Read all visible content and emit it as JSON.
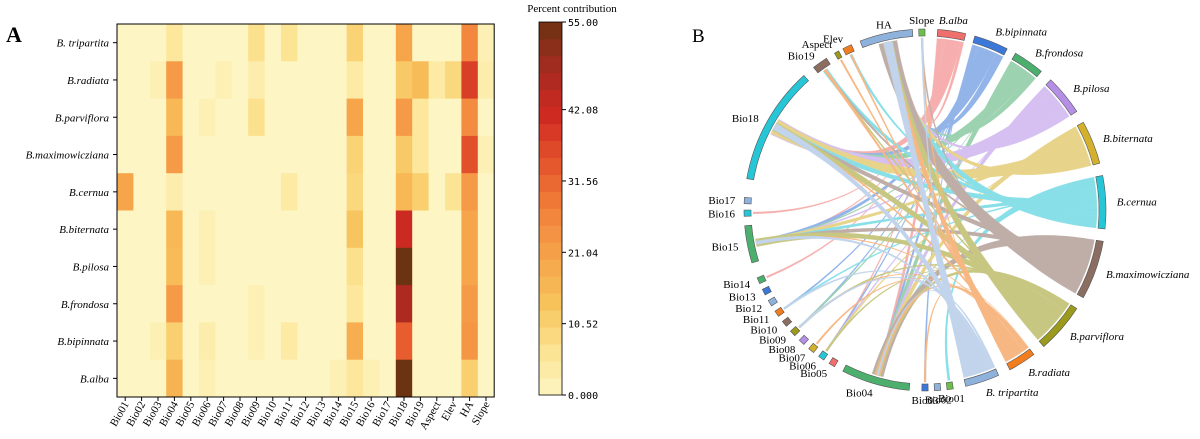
{
  "panels": {
    "a_label": "A",
    "b_label": "B"
  },
  "chart_data": [
    {
      "type": "heatmap",
      "panel": "A",
      "title": "",
      "colorbar_title": "Percent contribution",
      "colorbar_ticks": [
        "0.000",
        "10.52",
        "21.04",
        "31.56",
        "42.08",
        "55.00"
      ],
      "colorbar_range": [
        0,
        55
      ],
      "colorbar_stops": [
        "#fdf6c4",
        "#fbe28e",
        "#f7c25a",
        "#f6a24a",
        "#f2803a",
        "#e4542c",
        "#cf2a22",
        "#a52a20",
        "#6b3312"
      ],
      "columns": [
        "Bio01",
        "Bio02",
        "Bio03",
        "Bio04",
        "Bio05",
        "Bio06",
        "Bio07",
        "Bio08",
        "Bio09",
        "Bio10",
        "Bio11",
        "Bio12",
        "Bio13",
        "Bio14",
        "Bio15",
        "Bio16",
        "Bio17",
        "Bio18",
        "Bio19",
        "Aspect",
        "Elev",
        "HA",
        "Slope"
      ],
      "rows": [
        "B. tripartita",
        "B.radiata",
        "B.parviflora",
        "B.maximowicziana",
        "B.cernua",
        "B.biternata",
        "B.pilosa",
        "B.frondosa",
        "B.bipinnata",
        "B.alba"
      ],
      "values": [
        [
          0,
          0,
          0,
          5,
          0,
          0,
          0,
          0,
          7,
          0,
          6,
          0,
          0,
          0,
          10,
          0,
          0,
          20,
          0,
          0,
          0,
          26,
          2
        ],
        [
          0,
          0,
          2,
          22,
          0,
          0,
          2,
          0,
          3,
          0,
          0,
          0,
          0,
          0,
          4,
          0,
          0,
          12,
          15,
          4,
          9,
          38,
          3
        ],
        [
          0,
          0,
          0,
          16,
          0,
          2,
          0,
          0,
          7,
          0,
          0,
          0,
          0,
          0,
          20,
          0,
          0,
          22,
          5,
          0,
          0,
          25,
          0
        ],
        [
          0,
          0,
          0,
          22,
          0,
          0,
          0,
          0,
          0,
          0,
          0,
          0,
          0,
          0,
          10,
          0,
          0,
          12,
          5,
          0,
          0,
          35,
          2
        ],
        [
          20,
          0,
          0,
          3,
          0,
          0,
          0,
          0,
          0,
          0,
          4,
          0,
          0,
          0,
          9,
          0,
          0,
          16,
          11,
          0,
          6,
          22,
          0
        ],
        [
          0,
          0,
          0,
          16,
          0,
          2,
          0,
          0,
          0,
          0,
          0,
          0,
          0,
          0,
          13,
          0,
          0,
          42,
          0,
          0,
          0,
          20,
          0
        ],
        [
          0,
          0,
          0,
          15,
          0,
          2,
          0,
          0,
          0,
          0,
          0,
          0,
          0,
          0,
          7,
          0,
          0,
          55,
          0,
          0,
          0,
          20,
          0
        ],
        [
          0,
          0,
          0,
          22,
          0,
          0,
          0,
          0,
          2,
          0,
          0,
          0,
          0,
          0,
          5,
          0,
          0,
          47,
          0,
          0,
          0,
          22,
          0
        ],
        [
          0,
          0,
          2,
          11,
          0,
          3,
          0,
          0,
          2,
          0,
          4,
          0,
          0,
          0,
          18,
          0,
          0,
          33,
          0,
          0,
          0,
          23,
          0
        ],
        [
          0,
          0,
          0,
          17,
          0,
          2,
          0,
          0,
          0,
          0,
          0,
          0,
          0,
          2,
          5,
          2,
          0,
          55,
          0,
          0,
          0,
          11,
          0
        ]
      ]
    },
    {
      "type": "chord",
      "panel": "B",
      "species": [
        {
          "name": "B.alba",
          "color": "#ef6f6c"
        },
        {
          "name": "B.bipinnata",
          "color": "#3b78d8"
        },
        {
          "name": "B.frondosa",
          "color": "#4caf6e"
        },
        {
          "name": "B.pilosa",
          "color": "#b58ee6"
        },
        {
          "name": "B.biternata",
          "color": "#d4b12c"
        },
        {
          "name": "B.cernua",
          "color": "#27c6d6"
        },
        {
          "name": "B.maximowicziana",
          "color": "#8c6d62"
        },
        {
          "name": "B.parviflora",
          "color": "#9c9a1c"
        },
        {
          "name": "B.radiata",
          "color": "#f27d1e"
        },
        {
          "name": "B. tripartita",
          "color": "#8fb2dc"
        }
      ],
      "variables": [
        {
          "name": "Bio01",
          "color": "#6cc04a"
        },
        {
          "name": "Bio02",
          "color": "#8fb2dc"
        },
        {
          "name": "Bio03",
          "color": "#3b78d8"
        },
        {
          "name": "Bio04",
          "color": "#4caf6e"
        },
        {
          "name": "Bio05",
          "color": "#ef6f6c"
        },
        {
          "name": "Bio06",
          "color": "#27c6d6"
        },
        {
          "name": "Bio07",
          "color": "#d4b12c"
        },
        {
          "name": "Bio08",
          "color": "#b58ee6"
        },
        {
          "name": "Bio09",
          "color": "#9c9a1c"
        },
        {
          "name": "Bio10",
          "color": "#8c6d62"
        },
        {
          "name": "Bio11",
          "color": "#f27d1e"
        },
        {
          "name": "Bio12",
          "color": "#8fb2dc"
        },
        {
          "name": "Bio13",
          "color": "#3b78d8"
        },
        {
          "name": "Bio14",
          "color": "#4caf6e"
        },
        {
          "name": "Bio15",
          "color": "#4caf6e"
        },
        {
          "name": "Bio16",
          "color": "#27c6d6"
        },
        {
          "name": "Bio17",
          "color": "#8fb2dc"
        },
        {
          "name": "Bio18",
          "color": "#27c6d6"
        },
        {
          "name": "Bio19",
          "color": "#8c6d62"
        },
        {
          "name": "Aspect",
          "color": "#9c9a1c"
        },
        {
          "name": "Elev",
          "color": "#f27d1e"
        },
        {
          "name": "HA",
          "color": "#8fb2dc"
        },
        {
          "name": "Slope",
          "color": "#6cc04a"
        }
      ]
    }
  ]
}
